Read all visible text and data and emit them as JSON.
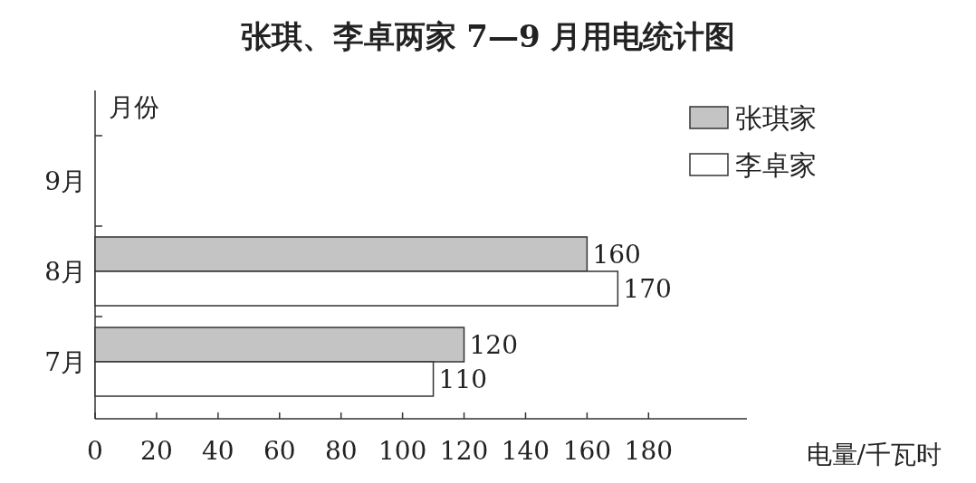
{
  "chart_data": {
    "type": "bar",
    "orientation": "horizontal",
    "title": "张琪、李卓两家 7—9 月用电统计图",
    "xlabel": "电量/千瓦时",
    "ylabel": "月份",
    "categories": [
      "9月",
      "8月",
      "7月"
    ],
    "series": [
      {
        "name": "张琪家",
        "color": "#c4c4c4",
        "values": [
          null,
          160,
          120
        ]
      },
      {
        "name": "李卓家",
        "color": "#ffffff",
        "values": [
          null,
          170,
          110
        ]
      }
    ],
    "xlim": [
      0,
      212
    ],
    "xticks": [
      0,
      20,
      40,
      60,
      80,
      100,
      120,
      140,
      160,
      180
    ],
    "data_labels": true,
    "legend": "top right"
  }
}
